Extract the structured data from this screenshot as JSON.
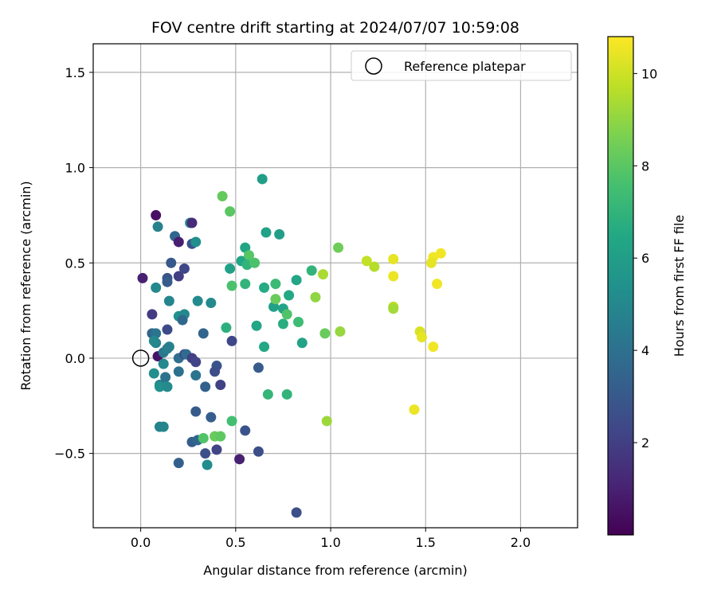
{
  "chart_data": {
    "type": "scatter",
    "title": "FOV centre drift starting at 2024/07/07 10:59:08",
    "xlabel": "Angular distance from reference (arcmin)",
    "ylabel": "Rotation from reference (arcmin)",
    "xlim": [
      -0.25,
      2.3
    ],
    "ylim": [
      -0.89,
      1.65
    ],
    "xticks": [
      0.0,
      0.5,
      1.0,
      1.5,
      2.0
    ],
    "xtick_labels": [
      "0.0",
      "0.5",
      "1.0",
      "1.5",
      "2.0"
    ],
    "yticks": [
      -0.5,
      0.0,
      0.5,
      1.0,
      1.5
    ],
    "ytick_labels": [
      "−0.5",
      "0.0",
      "0.5",
      "1.0",
      "1.5"
    ],
    "grid": true,
    "colormap": "viridis",
    "colorbar": {
      "label": "Hours from first FF file",
      "range": [
        0.0,
        10.8
      ],
      "ticks": [
        2,
        4,
        6,
        8,
        10
      ],
      "tick_labels": [
        "2",
        "4",
        "6",
        "8",
        "10"
      ]
    },
    "legend": {
      "position": "top-right",
      "entries": [
        "Reference platepar"
      ]
    },
    "reference_point": {
      "x": 0.0,
      "y": 0.0
    },
    "points": [
      {
        "x": 0.01,
        "y": 0.42,
        "c": 1.0
      },
      {
        "x": 0.08,
        "y": 0.75,
        "c": 0.5
      },
      {
        "x": 0.09,
        "y": 0.69,
        "c": 4.7
      },
      {
        "x": 0.06,
        "y": 0.23,
        "c": 1.9
      },
      {
        "x": 0.08,
        "y": 0.37,
        "c": 5.0
      },
      {
        "x": 0.06,
        "y": 0.13,
        "c": 3.5
      },
      {
        "x": 0.08,
        "y": 0.13,
        "c": 4.2
      },
      {
        "x": 0.09,
        "y": 0.01,
        "c": 0.6
      },
      {
        "x": 0.08,
        "y": 0.08,
        "c": 4.8
      },
      {
        "x": 0.07,
        "y": 0.09,
        "c": 5.0
      },
      {
        "x": 0.12,
        "y": 0.03,
        "c": 4.3
      },
      {
        "x": 0.12,
        "y": -0.03,
        "c": 5.1
      },
      {
        "x": 0.07,
        "y": -0.08,
        "c": 5.3
      },
      {
        "x": 0.1,
        "y": -0.14,
        "c": 4.6
      },
      {
        "x": 0.1,
        "y": -0.15,
        "c": 5.4
      },
      {
        "x": 0.13,
        "y": -0.1,
        "c": 4.1
      },
      {
        "x": 0.14,
        "y": -0.15,
        "c": 5.1
      },
      {
        "x": 0.1,
        "y": -0.36,
        "c": 4.8
      },
      {
        "x": 0.12,
        "y": -0.36,
        "c": 4.9
      },
      {
        "x": 0.14,
        "y": 0.42,
        "c": 2.8
      },
      {
        "x": 0.14,
        "y": 0.4,
        "c": 3.1
      },
      {
        "x": 0.16,
        "y": 0.5,
        "c": 3.0
      },
      {
        "x": 0.18,
        "y": 0.64,
        "c": 3.5
      },
      {
        "x": 0.2,
        "y": 0.61,
        "c": 0.9
      },
      {
        "x": 0.15,
        "y": 0.3,
        "c": 4.9
      },
      {
        "x": 0.14,
        "y": 0.15,
        "c": 2.4
      },
      {
        "x": 0.15,
        "y": 0.06,
        "c": 4.8
      },
      {
        "x": 0.14,
        "y": 0.05,
        "c": 4.6
      },
      {
        "x": 0.2,
        "y": 0.43,
        "c": 2.0
      },
      {
        "x": 0.23,
        "y": 0.47,
        "c": 2.3
      },
      {
        "x": 0.2,
        "y": 0.22,
        "c": 5.4
      },
      {
        "x": 0.23,
        "y": 0.23,
        "c": 5.0
      },
      {
        "x": 0.22,
        "y": 0.2,
        "c": 3.6
      },
      {
        "x": 0.2,
        "y": 0.0,
        "c": 3.9
      },
      {
        "x": 0.23,
        "y": 0.02,
        "c": 2.5
      },
      {
        "x": 0.24,
        "y": 0.02,
        "c": 3.8
      },
      {
        "x": 0.27,
        "y": 0.0,
        "c": 2.0
      },
      {
        "x": 0.29,
        "y": -0.02,
        "c": 2.2
      },
      {
        "x": 0.2,
        "y": -0.07,
        "c": 4.0
      },
      {
        "x": 0.29,
        "y": -0.09,
        "c": 4.1
      },
      {
        "x": 0.2,
        "y": -0.55,
        "c": 3.3
      },
      {
        "x": 0.26,
        "y": 0.71,
        "c": 5.2
      },
      {
        "x": 0.27,
        "y": 0.71,
        "c": 1.3
      },
      {
        "x": 0.27,
        "y": 0.6,
        "c": 2.8
      },
      {
        "x": 0.29,
        "y": 0.61,
        "c": 5.3
      },
      {
        "x": 0.3,
        "y": 0.3,
        "c": 5.1
      },
      {
        "x": 0.33,
        "y": 0.13,
        "c": 3.5
      },
      {
        "x": 0.37,
        "y": 0.29,
        "c": 5.1
      },
      {
        "x": 0.34,
        "y": -0.15,
        "c": 3.3
      },
      {
        "x": 0.29,
        "y": -0.28,
        "c": 3.1
      },
      {
        "x": 0.27,
        "y": -0.44,
        "c": 3.2
      },
      {
        "x": 0.3,
        "y": -0.43,
        "c": 3.6
      },
      {
        "x": 0.33,
        "y": -0.42,
        "c": 7.8
      },
      {
        "x": 0.34,
        "y": -0.5,
        "c": 2.6
      },
      {
        "x": 0.35,
        "y": -0.56,
        "c": 5.2
      },
      {
        "x": 0.37,
        "y": -0.31,
        "c": 3.2
      },
      {
        "x": 0.39,
        "y": -0.41,
        "c": 8.3
      },
      {
        "x": 0.42,
        "y": -0.41,
        "c": 8.1
      },
      {
        "x": 0.4,
        "y": -0.04,
        "c": 2.8
      },
      {
        "x": 0.39,
        "y": -0.07,
        "c": 2.6
      },
      {
        "x": 0.42,
        "y": -0.14,
        "c": 2.1
      },
      {
        "x": 0.4,
        "y": -0.48,
        "c": 2.2
      },
      {
        "x": 0.43,
        "y": 0.85,
        "c": 8.2
      },
      {
        "x": 0.47,
        "y": 0.77,
        "c": 8.0
      },
      {
        "x": 0.47,
        "y": 0.47,
        "c": 6.1
      },
      {
        "x": 0.48,
        "y": 0.38,
        "c": 7.7
      },
      {
        "x": 0.45,
        "y": 0.16,
        "c": 6.8
      },
      {
        "x": 0.48,
        "y": 0.09,
        "c": 2.3
      },
      {
        "x": 0.48,
        "y": -0.33,
        "c": 7.5
      },
      {
        "x": 0.52,
        "y": -0.53,
        "c": 1.0
      },
      {
        "x": 0.55,
        "y": -0.38,
        "c": 2.8
      },
      {
        "x": 0.53,
        "y": 0.51,
        "c": 6.4
      },
      {
        "x": 0.55,
        "y": 0.58,
        "c": 6.3
      },
      {
        "x": 0.57,
        "y": 0.54,
        "c": 7.9
      },
      {
        "x": 0.56,
        "y": 0.49,
        "c": 7.0
      },
      {
        "x": 0.55,
        "y": 0.39,
        "c": 7.0
      },
      {
        "x": 0.6,
        "y": 0.5,
        "c": 7.7
      },
      {
        "x": 0.61,
        "y": 0.17,
        "c": 6.4
      },
      {
        "x": 0.62,
        "y": -0.05,
        "c": 3.1
      },
      {
        "x": 0.62,
        "y": -0.49,
        "c": 2.6
      },
      {
        "x": 0.64,
        "y": 0.94,
        "c": 6.0
      },
      {
        "x": 0.66,
        "y": 0.66,
        "c": 6.2
      },
      {
        "x": 0.65,
        "y": 0.37,
        "c": 6.6
      },
      {
        "x": 0.65,
        "y": 0.06,
        "c": 6.5
      },
      {
        "x": 0.67,
        "y": -0.19,
        "c": 7.1
      },
      {
        "x": 0.7,
        "y": 0.27,
        "c": 6.1
      },
      {
        "x": 0.71,
        "y": 0.39,
        "c": 7.3
      },
      {
        "x": 0.71,
        "y": 0.31,
        "c": 8.3
      },
      {
        "x": 0.73,
        "y": 0.65,
        "c": 6.0
      },
      {
        "x": 0.75,
        "y": 0.26,
        "c": 6.3
      },
      {
        "x": 0.75,
        "y": 0.18,
        "c": 6.7
      },
      {
        "x": 0.77,
        "y": 0.23,
        "c": 7.8
      },
      {
        "x": 0.77,
        "y": -0.19,
        "c": 7.0
      },
      {
        "x": 0.78,
        "y": 0.33,
        "c": 6.5
      },
      {
        "x": 0.82,
        "y": 0.41,
        "c": 6.4
      },
      {
        "x": 0.83,
        "y": 0.19,
        "c": 7.4
      },
      {
        "x": 0.85,
        "y": 0.08,
        "c": 6.2
      },
      {
        "x": 0.82,
        "y": -0.81,
        "c": 2.6
      },
      {
        "x": 0.9,
        "y": 0.46,
        "c": 7.0
      },
      {
        "x": 0.92,
        "y": 0.32,
        "c": 9.0
      },
      {
        "x": 0.96,
        "y": 0.44,
        "c": 9.4
      },
      {
        "x": 0.97,
        "y": 0.13,
        "c": 8.3
      },
      {
        "x": 0.98,
        "y": -0.33,
        "c": 9.2
      },
      {
        "x": 1.04,
        "y": 0.58,
        "c": 8.4
      },
      {
        "x": 1.05,
        "y": 0.14,
        "c": 9.1
      },
      {
        "x": 1.19,
        "y": 0.51,
        "c": 9.8
      },
      {
        "x": 1.23,
        "y": 0.48,
        "c": 9.6
      },
      {
        "x": 1.33,
        "y": 0.52,
        "c": 10.4
      },
      {
        "x": 1.33,
        "y": 0.43,
        "c": 10.5
      },
      {
        "x": 1.33,
        "y": 0.27,
        "c": 9.7
      },
      {
        "x": 1.33,
        "y": 0.26,
        "c": 9.3
      },
      {
        "x": 1.44,
        "y": -0.27,
        "c": 10.5
      },
      {
        "x": 1.47,
        "y": 0.14,
        "c": 10.2
      },
      {
        "x": 1.48,
        "y": 0.11,
        "c": 10.4
      },
      {
        "x": 1.54,
        "y": 0.53,
        "c": 10.6
      },
      {
        "x": 1.53,
        "y": 0.5,
        "c": 10.4
      },
      {
        "x": 1.58,
        "y": 0.55,
        "c": 10.6
      },
      {
        "x": 1.56,
        "y": 0.39,
        "c": 10.6
      },
      {
        "x": 1.54,
        "y": 0.06,
        "c": 10.6
      }
    ]
  }
}
